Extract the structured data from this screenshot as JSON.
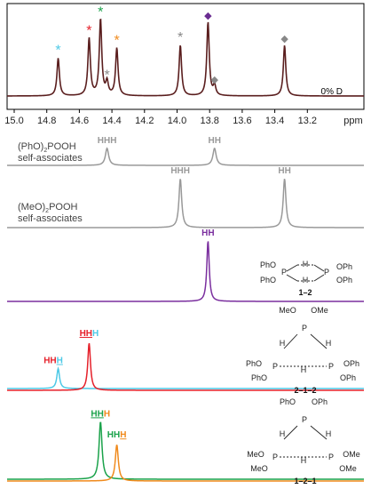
{
  "chart_data": {
    "type": "line",
    "xlabel": "ppm",
    "xlim": [
      15.0,
      13.0
    ],
    "x_ticks": [
      "15.0",
      "14.8",
      "14.6",
      "14.4",
      "14.2",
      "14.0",
      "13.8",
      "13.6",
      "13.4",
      "13.2"
    ],
    "top_annotation": "0% D",
    "top_spectrum": {
      "color": "#5a1e1e",
      "peaks": [
        {
          "ppm": 14.73,
          "height": 0.46,
          "marker": "*",
          "color": "#4dc9e6"
        },
        {
          "ppm": 14.54,
          "height": 0.7,
          "marker": "*",
          "color": "#e5202a"
        },
        {
          "ppm": 14.47,
          "height": 0.93,
          "marker": "*",
          "color": "#1aa24a"
        },
        {
          "ppm": 14.43,
          "height": 0.16,
          "marker": "*",
          "color": "#888888"
        },
        {
          "ppm": 14.37,
          "height": 0.58,
          "marker": "*",
          "color": "#f08a1c"
        },
        {
          "ppm": 13.98,
          "height": 0.62,
          "marker": "*",
          "color": "#888888"
        },
        {
          "ppm": 13.81,
          "height": 0.9,
          "marker": "◆",
          "color": "#6a2c91"
        },
        {
          "ppm": 13.77,
          "height": 0.12,
          "marker": "◆",
          "color": "#888888"
        },
        {
          "ppm": 13.34,
          "height": 0.62,
          "marker": "◆",
          "color": "#888888"
        }
      ]
    },
    "panels": [
      {
        "label_lines": [
          "(PhO)2POOH",
          "self-associates"
        ],
        "series": [
          {
            "color": "#999999",
            "peaks": [
              {
                "ppm": 14.43,
                "height": 0.35
              },
              {
                "ppm": 13.77,
                "height": 0.35
              }
            ]
          }
        ],
        "peak_labels": [
          {
            "ppm": 14.43,
            "parts": [
              {
                "text": "HHH",
                "color": "#999999"
              }
            ]
          },
          {
            "ppm": 13.77,
            "parts": [
              {
                "text": "HH",
                "color": "#999999"
              }
            ]
          }
        ]
      },
      {
        "label_lines": [
          "(MeO)2POOH",
          "self-associates"
        ],
        "series": [
          {
            "color": "#999999",
            "peaks": [
              {
                "ppm": 13.98,
                "height": 1.0
              },
              {
                "ppm": 13.34,
                "height": 1.0
              }
            ]
          }
        ],
        "peak_labels": [
          {
            "ppm": 13.98,
            "parts": [
              {
                "text": "HHH",
                "color": "#999999"
              }
            ]
          },
          {
            "ppm": 13.34,
            "parts": [
              {
                "text": "HH",
                "color": "#999999"
              }
            ]
          }
        ]
      },
      {
        "label_lines": [],
        "series": [
          {
            "color": "#7a2e9e",
            "peaks": [
              {
                "ppm": 13.81,
                "height": 1.0
              }
            ]
          }
        ],
        "peak_labels": [
          {
            "ppm": 13.81,
            "parts": [
              {
                "text": "HH",
                "color": "#7a2e9e"
              }
            ]
          }
        ],
        "compound": {
          "id": "1–2",
          "substituents": [
            "PhO",
            "PhO"
          ]
        }
      },
      {
        "label_lines": [],
        "series": [
          {
            "color": "#4dc9e6",
            "peaks": [
              {
                "ppm": 14.73,
                "height": 0.33
              }
            ]
          },
          {
            "color": "#e5202a",
            "peaks": [
              {
                "ppm": 14.54,
                "height": 0.78
              }
            ]
          }
        ],
        "peak_labels": [
          {
            "ppm": 14.76,
            "parts": [
              {
                "text": "HH",
                "color": "#e5202a"
              },
              {
                "text": "H",
                "color": "#4dc9e6",
                "underline": true
              }
            ]
          },
          {
            "ppm": 14.54,
            "parts": [
              {
                "text": "HH",
                "color": "#e5202a",
                "underline": true
              },
              {
                "text": "H",
                "color": "#4dc9e6"
              }
            ]
          }
        ],
        "compound": {
          "id": "2–1–2",
          "substituents": [
            "MeO",
            "OMe",
            "PhO",
            "PhO",
            "OPh",
            "OPh"
          ]
        }
      },
      {
        "label_lines": [],
        "series": [
          {
            "color": "#1aa24a",
            "peaks": [
              {
                "ppm": 14.47,
                "height": 0.95
              }
            ]
          },
          {
            "color": "#f08a1c",
            "peaks": [
              {
                "ppm": 14.37,
                "height": 0.6
              }
            ]
          }
        ],
        "peak_labels": [
          {
            "ppm": 14.47,
            "parts": [
              {
                "text": "HH",
                "color": "#1aa24a",
                "underline": true
              },
              {
                "text": "H",
                "color": "#f08a1c"
              }
            ]
          },
          {
            "ppm": 14.37,
            "parts": [
              {
                "text": "HH",
                "color": "#1aa24a"
              },
              {
                "text": "H",
                "color": "#f08a1c",
                "underline": true
              }
            ]
          }
        ],
        "compound": {
          "id": "1–2–1",
          "substituents": [
            "PhO",
            "OPh",
            "MeO",
            "MeO",
            "OMe",
            "OMe"
          ]
        }
      }
    ]
  }
}
